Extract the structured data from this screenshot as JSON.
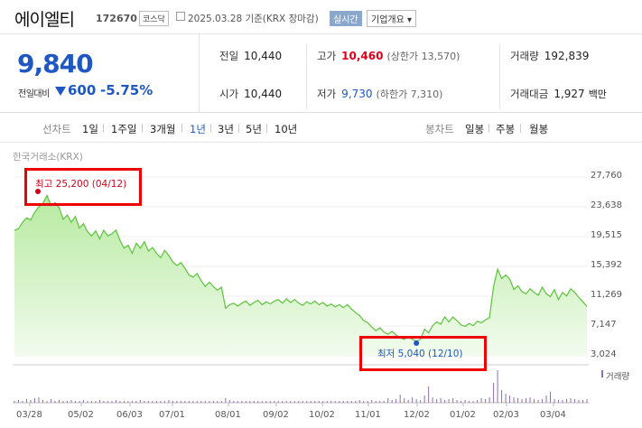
{
  "header": {
    "name": "에이엘티",
    "code": "172670",
    "market": "코스닥",
    "date": "2025.03.28  기준(KRX 장마감)",
    "live_label": "실시간",
    "info_label": "기업개요 ▾"
  },
  "summary": {
    "price": "9,840",
    "change_label": "전일대비",
    "change": "600",
    "change_pct": "-5.75%",
    "prev_close_label": "전일",
    "prev_close": "10,440",
    "high_label": "고가",
    "high": "10,460",
    "upper_limit": "(상한가 13,570)",
    "volume_label": "거래량",
    "volume": "192,839",
    "open_label": "시가",
    "open": "10,440",
    "low_label": "저가",
    "low": "9,730",
    "lower_limit": "(하한가 7,310)",
    "amount_label": "거래대금",
    "amount": "1,927",
    "amount_unit": "백만"
  },
  "period_bar": {
    "line_label": "선차트",
    "periods": [
      "1일",
      "1주일",
      "3개월",
      "1년",
      "3년",
      "5년",
      "10년"
    ],
    "selected": "1년",
    "candle_label": "봉차트",
    "candles": [
      "일봉",
      "주봉",
      "월봉"
    ]
  },
  "chart_data": {
    "type": "area",
    "source_label": "한국거래소(KRX)",
    "y_ticks": [
      "27,760",
      "23,638",
      "19,515",
      "15,392",
      "11,269",
      "7,147",
      "3,024"
    ],
    "x_ticks": [
      "03/28",
      "05/02",
      "06/03",
      "07/01",
      "08/01",
      "09/02",
      "10/02",
      "11/01",
      "12/02",
      "01/02",
      "02/03",
      "03/04"
    ],
    "ylim": [
      3024,
      27760
    ],
    "high_annotation": "최고 25,200 (04/12)",
    "low_annotation": "최저 5,040 (12/10)",
    "volume_label": "거래량",
    "colors": {
      "line": "#5cc43b",
      "fill": "#d6f3c6",
      "volume": "#8f6fb0",
      "high": "#d0021b",
      "low": "#1f57c3"
    },
    "values": [
      20400,
      20600,
      21500,
      22100,
      21800,
      22900,
      23600,
      24100,
      25200,
      23800,
      24200,
      23500,
      21900,
      22500,
      21500,
      22300,
      20700,
      21300,
      20200,
      19600,
      20300,
      19200,
      20400,
      19600,
      19900,
      20400,
      19000,
      17900,
      18300,
      17200,
      18600,
      17900,
      18800,
      17500,
      18000,
      17200,
      16600,
      17600,
      16900,
      16000,
      15500,
      15900,
      15100,
      14200,
      13900,
      14400,
      13400,
      12600,
      13200,
      12600,
      12100,
      12500,
      9600,
      10100,
      10300,
      9900,
      10300,
      10600,
      10000,
      10400,
      10700,
      10100,
      10500,
      10200,
      10600,
      10800,
      10300,
      10900,
      10400,
      10800,
      10300,
      10000,
      10500,
      10200,
      10600,
      10100,
      10400,
      9900,
      10200,
      9800,
      10100,
      9700,
      10100,
      9500,
      9000,
      8600,
      7900,
      7600,
      7000,
      6500,
      6900,
      6300,
      6000,
      6400,
      5900,
      5500,
      5300,
      5700,
      5300,
      5040,
      5300,
      6700,
      6200,
      7200,
      7700,
      7400,
      8400,
      7700,
      8400,
      7900,
      7300,
      7100,
      7500,
      7200,
      7800,
      7600,
      8000,
      8300,
      12600,
      15000,
      13700,
      14200,
      13600,
      12200,
      12700,
      11900,
      11600,
      12300,
      11800,
      11400,
      12500,
      11600,
      11200,
      12200,
      10800,
      11800,
      11300,
      12300,
      11800,
      11100,
      10500,
      9840
    ],
    "volume": [
      2,
      3,
      2,
      4,
      3,
      5,
      6,
      3,
      2,
      4,
      2,
      3,
      2,
      2,
      3,
      2,
      2,
      3,
      2,
      2,
      2,
      3,
      2,
      2,
      2,
      3,
      2,
      2,
      2,
      2,
      2,
      3,
      2,
      2,
      2,
      2,
      2,
      2,
      3,
      2,
      2,
      2,
      2,
      2,
      2,
      2,
      2,
      2,
      2,
      2,
      2,
      2,
      5,
      3,
      2,
      2,
      2,
      2,
      2,
      2,
      2,
      2,
      2,
      2,
      2,
      2,
      2,
      2,
      2,
      2,
      2,
      2,
      2,
      2,
      2,
      2,
      2,
      2,
      2,
      2,
      2,
      2,
      2,
      2,
      2,
      3,
      2,
      2,
      3,
      2,
      2,
      2,
      5,
      3,
      4,
      9,
      5,
      3,
      6,
      4,
      3,
      8,
      18,
      6,
      4,
      5,
      3,
      4,
      5,
      3,
      2,
      3,
      2,
      2,
      3,
      5,
      4,
      6,
      22,
      36,
      14,
      10,
      8,
      6,
      5,
      4,
      5,
      6,
      4,
      3,
      4,
      8,
      12,
      4,
      3,
      3,
      4,
      5,
      4,
      3,
      3,
      4
    ]
  }
}
